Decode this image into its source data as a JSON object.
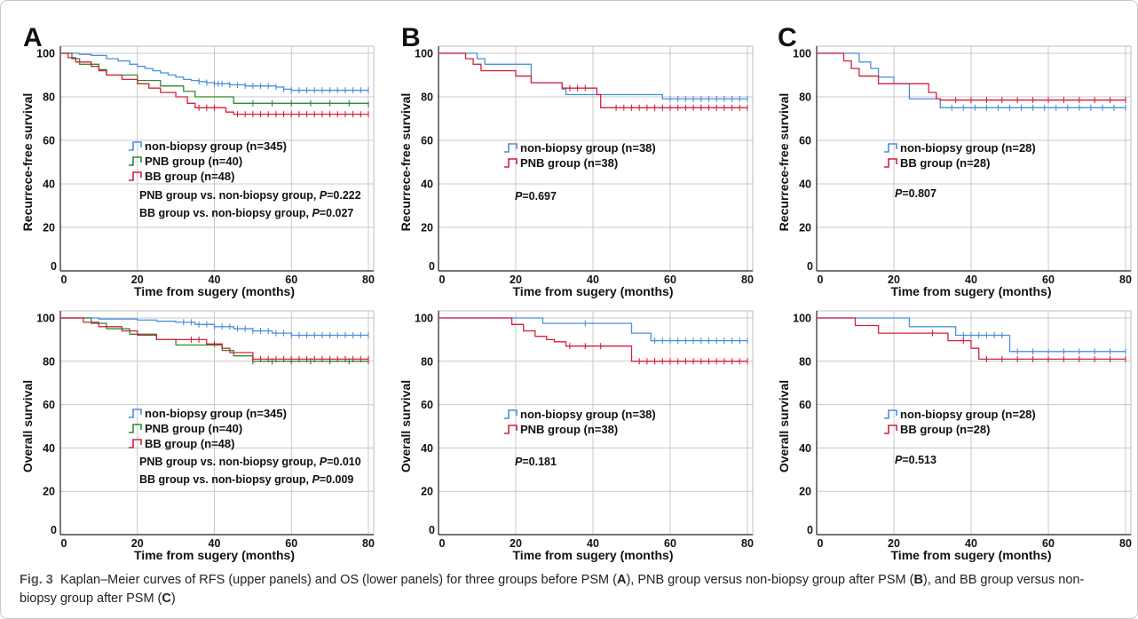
{
  "caption": {
    "label": "Fig. 3",
    "text_1": "Kaplan–Meier curves of RFS (upper panels) and OS (lower panels) for three groups before PSM (",
    "ref_a": "A",
    "text_2": "), PNB group versus non-biopsy group after PSM (",
    "ref_b": "B",
    "text_3": "), and BB group versus non-biopsy group after PSM (",
    "ref_c": "C",
    "text_4": ")"
  },
  "colors": {
    "non_biopsy": "#4a90d9",
    "pnb": "#2e8b2e",
    "bb": "#d42040"
  },
  "chart_data": [
    {
      "panel": "A",
      "type": "line",
      "xlabel": "Time from sugery (months)",
      "ylabel": "Recurrece-free survival",
      "xlim": [
        0,
        80
      ],
      "ylim": [
        0,
        100
      ],
      "xticks": [
        0,
        20,
        40,
        60,
        80
      ],
      "yticks": [
        0,
        20,
        40,
        60,
        80,
        100
      ],
      "grid": true,
      "legend_position": "center",
      "series": [
        {
          "name": "non-biopsy group (n=345)",
          "color": "#4a90d9",
          "x": [
            0,
            5,
            8,
            12,
            15,
            18,
            20,
            22,
            24,
            26,
            28,
            30,
            32,
            34,
            36,
            38,
            40,
            42,
            44,
            46,
            48,
            50,
            52,
            54,
            56,
            58,
            60,
            62,
            64,
            66,
            80
          ],
          "y": [
            100,
            99.5,
            99,
            97.5,
            96.5,
            95,
            94,
            93,
            92,
            91,
            90,
            89,
            88,
            87.5,
            87,
            86.5,
            86,
            86,
            85.5,
            85.5,
            85,
            85,
            85,
            85,
            84.5,
            83.5,
            83,
            83,
            83,
            83,
            83
          ],
          "censor_x": [
            36,
            38,
            40,
            41,
            42,
            44,
            46,
            48,
            50,
            52,
            54,
            56,
            58,
            60,
            62,
            64,
            66,
            68,
            70,
            72,
            74,
            76,
            78,
            80
          ]
        },
        {
          "name": "PNB group (n=40)",
          "color": "#2e8b2e",
          "x": [
            0,
            3,
            5,
            10,
            12,
            14,
            16,
            18,
            20,
            22,
            24,
            26,
            28,
            30,
            32,
            34,
            35,
            38,
            42,
            45,
            80
          ],
          "y": [
            100,
            97.5,
            95,
            92.5,
            90,
            90,
            90,
            90,
            87.5,
            87.5,
            87.5,
            85,
            85,
            85,
            82.5,
            82.5,
            80,
            80,
            80,
            77,
            76.5
          ],
          "censor_x": [
            50,
            55,
            60,
            65,
            70,
            75,
            80
          ]
        },
        {
          "name": "BB group (n=48)",
          "color": "#d42040",
          "x": [
            0,
            2,
            4,
            8,
            10,
            12,
            14,
            16,
            20,
            23,
            26,
            28,
            30,
            33,
            35,
            38,
            40,
            43,
            45,
            80
          ],
          "y": [
            100,
            98,
            96,
            94,
            92,
            90,
            90,
            88,
            86,
            84,
            82,
            82,
            80,
            77,
            75,
            75,
            75,
            73,
            72,
            72
          ],
          "censor_x": [
            36,
            38,
            40,
            46,
            48,
            50,
            52,
            54,
            56,
            58,
            60,
            62,
            64,
            66,
            68,
            70,
            72,
            74,
            76,
            78,
            80
          ]
        }
      ],
      "annotations": [
        "PNB group vs. non-biopsy group, P=0.222",
        "BB group vs. non-biopsy group, P=0.027"
      ]
    },
    {
      "panel": "B",
      "type": "line",
      "xlabel": "Time from sugery (months)",
      "ylabel": "Recurrece-free survival",
      "xlim": [
        0,
        80
      ],
      "ylim": [
        0,
        100
      ],
      "xticks": [
        0,
        20,
        40,
        60,
        80
      ],
      "yticks": [
        0,
        20,
        40,
        60,
        80,
        100
      ],
      "grid": true,
      "legend_position": "center",
      "series": [
        {
          "name": "non-biopsy group (n=38)",
          "color": "#4a90d9",
          "x": [
            0,
            10,
            12,
            24,
            32,
            33,
            58,
            80
          ],
          "y": [
            100,
            97.5,
            95,
            86.5,
            83.5,
            81,
            79,
            79
          ],
          "censor_x": [
            60,
            62,
            64,
            66,
            68,
            70,
            72,
            74,
            76,
            78,
            80
          ]
        },
        {
          "name": "PNB group (n=38)",
          "color": "#d42040",
          "x": [
            0,
            7,
            9,
            11,
            16,
            20,
            24,
            32,
            36,
            41,
            42,
            80
          ],
          "y": [
            100,
            97.5,
            95,
            92,
            92,
            89.5,
            86.5,
            84,
            84,
            81,
            75,
            75
          ],
          "censor_x": [
            34,
            36,
            38,
            46,
            48,
            50,
            52,
            54,
            56,
            58,
            60,
            62,
            64,
            66,
            68,
            70,
            72,
            74,
            76,
            78,
            80
          ]
        }
      ],
      "annotations": [
        "P=0.697"
      ]
    },
    {
      "panel": "C",
      "type": "line",
      "xlabel": "Time from sugery (months)",
      "ylabel": "Recurrece-free survival",
      "xlim": [
        0,
        80
      ],
      "ylim": [
        0,
        100
      ],
      "xticks": [
        0,
        20,
        40,
        60,
        80
      ],
      "yticks": [
        0,
        20,
        40,
        60,
        80,
        100
      ],
      "grid": true,
      "legend_position": "center",
      "series": [
        {
          "name": "non-biopsy group (n=28)",
          "color": "#4a90d9",
          "x": [
            0,
            11,
            14,
            16,
            20,
            24,
            32,
            80
          ],
          "y": [
            100,
            96,
            93,
            89,
            86,
            79,
            75,
            75
          ],
          "censor_x": [
            35,
            38,
            41,
            44,
            47,
            50,
            53,
            56,
            59,
            62,
            65,
            68,
            71,
            74,
            77,
            80
          ]
        },
        {
          "name": "BB group (n=28)",
          "color": "#d42040",
          "x": [
            0,
            7,
            9,
            11,
            16,
            20,
            24,
            29,
            31,
            32,
            80
          ],
          "y": [
            100,
            96.5,
            93,
            89.5,
            86,
            86,
            86,
            82,
            79,
            78.5,
            78.5
          ],
          "censor_x": [
            36,
            40,
            44,
            48,
            52,
            56,
            60,
            64,
            68,
            72,
            76,
            80
          ]
        }
      ],
      "annotations": [
        "P=0.807"
      ]
    },
    {
      "panel": "A",
      "type": "line",
      "xlabel": "Time from sugery (months)",
      "ylabel": "Overall survival",
      "xlim": [
        0,
        80
      ],
      "ylim": [
        0,
        100
      ],
      "xticks": [
        0,
        20,
        40,
        60,
        80
      ],
      "yticks": [
        0,
        20,
        40,
        60,
        80,
        100
      ],
      "grid": true,
      "legend_position": "center",
      "series": [
        {
          "name": "non-biopsy group (n=345)",
          "color": "#4a90d9",
          "x": [
            0,
            10,
            20,
            25,
            30,
            35,
            40,
            45,
            50,
            55,
            60,
            80
          ],
          "y": [
            100,
            99.5,
            99,
            98.5,
            98,
            97,
            96,
            95,
            94,
            93,
            92,
            92
          ],
          "censor_x": [
            32,
            34,
            36,
            38,
            40,
            42,
            44,
            46,
            48,
            50,
            52,
            54,
            56,
            58,
            60,
            62,
            64,
            66,
            68,
            70,
            72,
            74,
            76,
            78,
            80
          ]
        },
        {
          "name": "PNB group (n=40)",
          "color": "#2e8b2e",
          "x": [
            0,
            8,
            12,
            15,
            18,
            20,
            25,
            30,
            33,
            36,
            38,
            42,
            45,
            50,
            80
          ],
          "y": [
            100,
            97.5,
            95,
            95,
            92.5,
            92.5,
            90,
            87.5,
            87.5,
            87.5,
            87.5,
            85,
            82.5,
            80,
            80
          ],
          "censor_x": [
            50,
            55,
            60,
            65,
            70,
            75,
            80
          ]
        },
        {
          "name": "BB group (n=48)",
          "color": "#d42040",
          "x": [
            0,
            6,
            10,
            16,
            20,
            25,
            28,
            34,
            38,
            40,
            42,
            44,
            50,
            80
          ],
          "y": [
            100,
            98,
            96,
            94,
            92,
            90,
            90,
            90,
            88,
            88,
            86,
            84,
            81,
            81
          ],
          "censor_x": [
            34,
            36,
            40,
            50,
            52,
            54,
            56,
            58,
            60,
            62,
            64,
            66,
            68,
            70,
            72,
            74,
            76,
            78,
            80
          ]
        }
      ],
      "annotations": [
        "PNB group vs. non-biopsy group, P=0.010",
        "BB group vs. non-biopsy group, P=0.009"
      ]
    },
    {
      "panel": "B",
      "type": "line",
      "xlabel": "Time from sugery (months)",
      "ylabel": "Overall survival",
      "xlim": [
        0,
        80
      ],
      "ylim": [
        0,
        100
      ],
      "xticks": [
        0,
        20,
        40,
        60,
        80
      ],
      "yticks": [
        0,
        20,
        40,
        60,
        80,
        100
      ],
      "grid": true,
      "legend_position": "center",
      "series": [
        {
          "name": "non-biopsy group (n=38)",
          "color": "#4a90d9",
          "x": [
            0,
            27,
            50,
            55,
            80
          ],
          "y": [
            100,
            97.5,
            93,
            89.5,
            89.5
          ],
          "censor_x": [
            38,
            56,
            58,
            60,
            62,
            64,
            66,
            68,
            70,
            72,
            74,
            76,
            78,
            80
          ]
        },
        {
          "name": "PNB group (n=38)",
          "color": "#d42040",
          "x": [
            0,
            19,
            22,
            25,
            28,
            30,
            33,
            36,
            42,
            48,
            50,
            80
          ],
          "y": [
            100,
            97,
            94,
            91.5,
            90,
            89,
            87,
            87,
            87,
            87,
            80,
            80
          ],
          "censor_x": [
            34,
            38,
            42,
            52,
            54,
            56,
            58,
            60,
            62,
            64,
            66,
            68,
            70,
            72,
            74,
            76,
            78,
            80
          ]
        }
      ],
      "annotations": [
        "P=0.181"
      ]
    },
    {
      "panel": "C",
      "type": "line",
      "xlabel": "Time from sugery (months)",
      "ylabel": "Overall survival",
      "xlim": [
        0,
        80
      ],
      "ylim": [
        0,
        100
      ],
      "xticks": [
        0,
        20,
        40,
        60,
        80
      ],
      "yticks": [
        0,
        20,
        40,
        60,
        80,
        100
      ],
      "grid": true,
      "legend_position": "center",
      "series": [
        {
          "name": "non-biopsy group (n=28)",
          "color": "#4a90d9",
          "x": [
            0,
            24,
            36,
            50,
            80
          ],
          "y": [
            100,
            96,
            92,
            84.5,
            84.5
          ],
          "censor_x": [
            38,
            40,
            42,
            44,
            46,
            48,
            52,
            56,
            60,
            64,
            68,
            72,
            76,
            80
          ]
        },
        {
          "name": "BB group (n=28)",
          "color": "#d42040",
          "x": [
            0,
            10,
            16,
            34,
            40,
            42,
            80
          ],
          "y": [
            100,
            96.5,
            93,
            89.5,
            86,
            81,
            81
          ],
          "censor_x": [
            30,
            38,
            44,
            48,
            52,
            56,
            60,
            64,
            68,
            72,
            76,
            80
          ]
        }
      ],
      "annotations": [
        "P=0.513"
      ]
    }
  ]
}
